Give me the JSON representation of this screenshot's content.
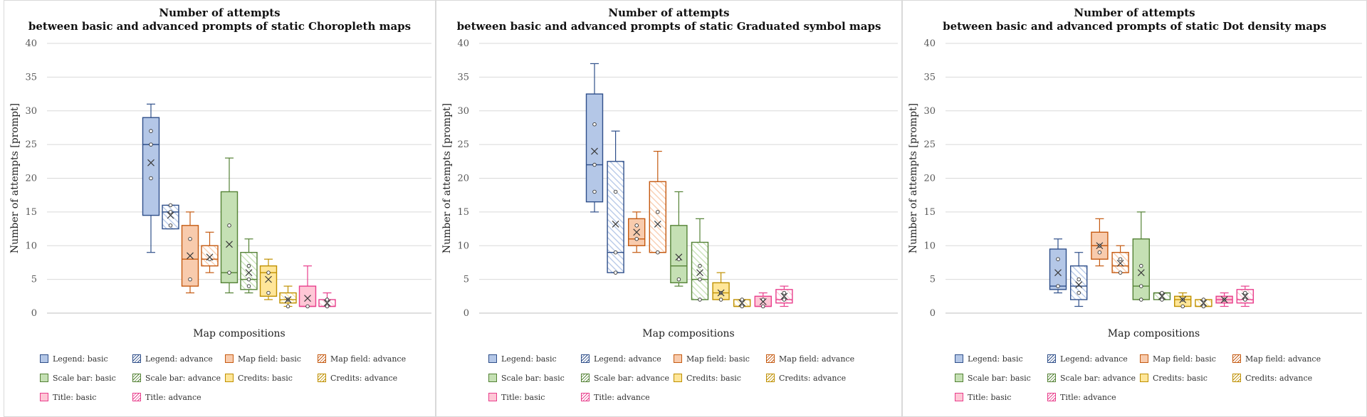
{
  "colors": {
    "legend": {
      "fill": "#b4c7e7",
      "stroke": "#2f4f8a"
    },
    "map_field": {
      "fill": "#f8cbad",
      "stroke": "#c55a11"
    },
    "scale_bar": {
      "fill": "#c5e0b4",
      "stroke": "#548235"
    },
    "credits": {
      "fill": "#ffe699",
      "stroke": "#bf9000"
    },
    "title": {
      "fill": "#ffc7d6",
      "stroke": "#e83e8c"
    }
  },
  "chart_data": [
    {
      "type": "box",
      "title_line1": "Number of attempts",
      "title_line2": "between basic and advanced prompts of static Choropleth maps",
      "xlabel": "Map compositions",
      "ylabel": "Number of attempts [prompt]",
      "ylim": [
        0,
        40
      ],
      "yticks": [
        "0",
        "5",
        "10",
        "15",
        "20",
        "25",
        "30",
        "35",
        "40"
      ],
      "grid": true,
      "legend_position": "bottom",
      "series": [
        {
          "name": "Legend: basic",
          "group": "legend",
          "pattern": "solid",
          "min": 9,
          "q1": 14.5,
          "median": 25,
          "q3": 29,
          "max": 31,
          "mean": 22.3,
          "points": [
            20,
            25,
            27
          ]
        },
        {
          "name": "Legend: advance",
          "group": "legend",
          "pattern": "hatch",
          "min": 12.5,
          "q1": 12.5,
          "median": 15,
          "q3": 16,
          "max": 16,
          "mean": 14.5,
          "points": [
            13,
            15,
            16
          ]
        },
        {
          "name": "Map field: basic",
          "group": "map_field",
          "pattern": "solid",
          "min": 3,
          "q1": 4,
          "median": 8,
          "q3": 13,
          "max": 15,
          "mean": 8.5,
          "points": [
            5,
            11
          ]
        },
        {
          "name": "Map field: advance",
          "group": "map_field",
          "pattern": "hatch",
          "min": 6,
          "q1": 7,
          "median": 8,
          "q3": 10,
          "max": 12,
          "mean": 8.3,
          "points": [
            8
          ]
        },
        {
          "name": "Scale bar: basic",
          "group": "scale_bar",
          "pattern": "solid",
          "min": 3,
          "q1": 4.5,
          "median": 6,
          "q3": 18,
          "max": 23,
          "mean": 10.2,
          "points": [
            6,
            13
          ]
        },
        {
          "name": "Scale bar: advance",
          "group": "scale_bar",
          "pattern": "hatch",
          "min": 3,
          "q1": 3.5,
          "median": 5,
          "q3": 9,
          "max": 11,
          "mean": 6,
          "points": [
            4,
            5,
            7
          ]
        },
        {
          "name": "Credits: basic",
          "group": "credits",
          "pattern": "solid",
          "min": 2,
          "q1": 2.5,
          "median": 6,
          "q3": 7,
          "max": 8,
          "mean": 5,
          "points": [
            3,
            6
          ]
        },
        {
          "name": "Credits: advance",
          "group": "credits",
          "pattern": "hatch",
          "min": 1,
          "q1": 1.5,
          "median": 2,
          "q3": 3,
          "max": 4,
          "mean": 2,
          "points": [
            1,
            2
          ]
        },
        {
          "name": "Title: basic",
          "group": "title",
          "pattern": "solid",
          "min": 1,
          "q1": 1,
          "median": 1,
          "q3": 4,
          "max": 7,
          "mean": 2.2,
          "points": [
            1
          ]
        },
        {
          "name": "Title: advance",
          "group": "title",
          "pattern": "hatch",
          "min": 1,
          "q1": 1,
          "median": 1,
          "q3": 2,
          "max": 3,
          "mean": 1.5,
          "points": [
            1,
            2
          ]
        }
      ]
    },
    {
      "type": "box",
      "title_line1": "Number of attempts",
      "title_line2": "between basic and advanced prompts of static Graduated symbol maps",
      "xlabel": "Map compositions",
      "ylabel": "Number of attempts [prompt]",
      "ylim": [
        0,
        40
      ],
      "yticks": [
        "0",
        "5",
        "10",
        "15",
        "20",
        "25",
        "30",
        "35",
        "40"
      ],
      "grid": true,
      "legend_position": "bottom",
      "series": [
        {
          "name": "Legend: basic",
          "group": "legend",
          "pattern": "solid",
          "min": 15,
          "q1": 16.5,
          "median": 22,
          "q3": 32.5,
          "max": 37,
          "mean": 24,
          "points": [
            18,
            22,
            28
          ]
        },
        {
          "name": "Legend: advance",
          "group": "legend",
          "pattern": "hatch",
          "min": 6,
          "q1": 6,
          "median": 9,
          "q3": 22.5,
          "max": 27,
          "mean": 13.2,
          "points": [
            6,
            9,
            18
          ]
        },
        {
          "name": "Map field: basic",
          "group": "map_field",
          "pattern": "solid",
          "min": 9,
          "q1": 10,
          "median": 11,
          "q3": 14,
          "max": 15,
          "mean": 12,
          "points": [
            11,
            13
          ]
        },
        {
          "name": "Map field: advance",
          "group": "map_field",
          "pattern": "hatch",
          "min": 9,
          "q1": 9,
          "median": 9,
          "q3": 19.5,
          "max": 24,
          "mean": 13.2,
          "points": [
            9,
            15
          ]
        },
        {
          "name": "Scale bar: basic",
          "group": "scale_bar",
          "pattern": "solid",
          "min": 4,
          "q1": 4.5,
          "median": 7,
          "q3": 13,
          "max": 18,
          "mean": 8.3,
          "points": [
            5,
            8
          ]
        },
        {
          "name": "Scale bar: advance",
          "group": "scale_bar",
          "pattern": "hatch",
          "min": 2,
          "q1": 2,
          "median": 5,
          "q3": 10.5,
          "max": 14,
          "mean": 6,
          "points": [
            2,
            5,
            7
          ]
        },
        {
          "name": "Credits: basic",
          "group": "credits",
          "pattern": "solid",
          "min": 2,
          "q1": 2,
          "median": 3,
          "q3": 4.5,
          "max": 6,
          "mean": 3,
          "points": [
            2,
            3
          ]
        },
        {
          "name": "Credits: advance",
          "group": "credits",
          "pattern": "hatch",
          "min": 1,
          "q1": 1,
          "median": 1,
          "q3": 2,
          "max": 2,
          "mean": 1.5,
          "points": [
            1,
            2
          ]
        },
        {
          "name": "Title: basic",
          "group": "title",
          "pattern": "solid",
          "min": 1,
          "q1": 1,
          "median": 1,
          "q3": 2.5,
          "max": 3,
          "mean": 1.7,
          "points": [
            1,
            2
          ]
        },
        {
          "name": "Title: advance",
          "group": "title",
          "pattern": "hatch",
          "min": 1,
          "q1": 1.5,
          "median": 2,
          "q3": 3.5,
          "max": 4,
          "mean": 2.5,
          "points": [
            2,
            3
          ]
        }
      ]
    },
    {
      "type": "box",
      "title_line1": "Number of attempts",
      "title_line2": "between basic and advanced prompts of static Dot density maps",
      "xlabel": "Map compositions",
      "ylabel": "Number of attempts [prompt]",
      "ylim": [
        0,
        40
      ],
      "yticks": [
        "0",
        "5",
        "10",
        "15",
        "20",
        "25",
        "30",
        "35",
        "40"
      ],
      "grid": true,
      "legend_position": "bottom",
      "series": [
        {
          "name": "Legend: basic",
          "group": "legend",
          "pattern": "solid",
          "min": 3,
          "q1": 3.5,
          "median": 4,
          "q3": 9.5,
          "max": 11,
          "mean": 6,
          "points": [
            4,
            8
          ]
        },
        {
          "name": "Legend: advance",
          "group": "legend",
          "pattern": "hatch",
          "min": 1,
          "q1": 2,
          "median": 4,
          "q3": 7,
          "max": 9,
          "mean": 4.2,
          "points": [
            3,
            5
          ]
        },
        {
          "name": "Map field: basic",
          "group": "map_field",
          "pattern": "solid",
          "min": 7,
          "q1": 8,
          "median": 10,
          "q3": 12,
          "max": 14,
          "mean": 10,
          "points": [
            9,
            10
          ]
        },
        {
          "name": "Map field: advance",
          "group": "map_field",
          "pattern": "hatch",
          "min": 6,
          "q1": 6,
          "median": 7,
          "q3": 9,
          "max": 10,
          "mean": 7.4,
          "points": [
            6,
            8
          ]
        },
        {
          "name": "Scale bar: basic",
          "group": "scale_bar",
          "pattern": "solid",
          "min": 2,
          "q1": 2,
          "median": 4,
          "q3": 11,
          "max": 15,
          "mean": 6,
          "points": [
            2,
            4,
            7
          ]
        },
        {
          "name": "Scale bar: advance",
          "group": "scale_bar",
          "pattern": "hatch",
          "min": 2,
          "q1": 2,
          "median": 3,
          "q3": 3,
          "max": 3,
          "mean": 2.5,
          "points": [
            2,
            3
          ]
        },
        {
          "name": "Credits: basic",
          "group": "credits",
          "pattern": "solid",
          "min": 1,
          "q1": 1,
          "median": 2,
          "q3": 2.5,
          "max": 3,
          "mean": 2,
          "points": [
            1,
            2
          ]
        },
        {
          "name": "Credits: advance",
          "group": "credits",
          "pattern": "hatch",
          "min": 1,
          "q1": 1,
          "median": 1,
          "q3": 2,
          "max": 2,
          "mean": 1.5,
          "points": [
            1,
            2
          ]
        },
        {
          "name": "Title: basic",
          "group": "title",
          "pattern": "solid",
          "min": 1,
          "q1": 1.5,
          "median": 2,
          "q3": 2.5,
          "max": 3,
          "mean": 2,
          "points": [
            2
          ]
        },
        {
          "name": "Title: advance",
          "group": "title",
          "pattern": "hatch",
          "min": 1,
          "q1": 1.5,
          "median": 2,
          "q3": 3.5,
          "max": 4,
          "mean": 2.5,
          "points": [
            2,
            3
          ]
        }
      ]
    }
  ]
}
